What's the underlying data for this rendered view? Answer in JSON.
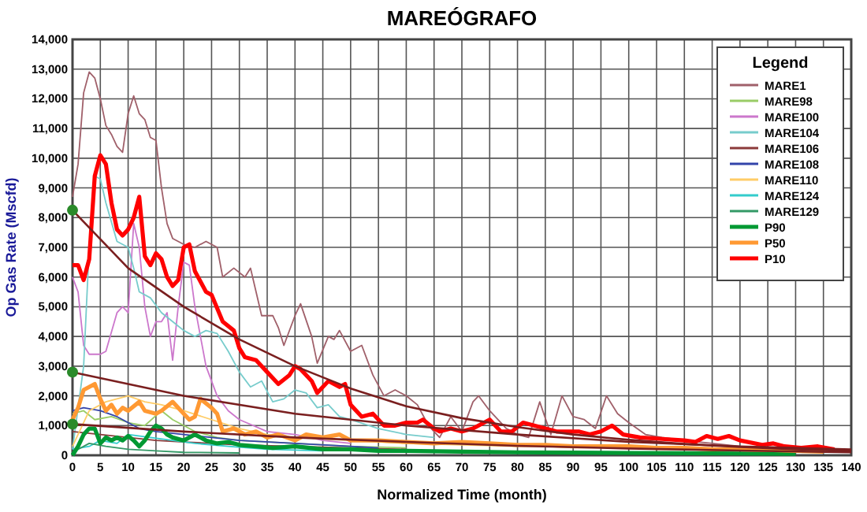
{
  "chart_data": {
    "type": "line",
    "title": "MAREÓGRAFO",
    "xlabel": "Normalized Time (month)",
    "ylabel": "Op Gas Rate (Mscfd)",
    "legend_title": "Legend",
    "legend": "top right",
    "grid": true,
    "xlim": [
      0,
      140
    ],
    "xticks": [
      0,
      5,
      10,
      15,
      20,
      25,
      30,
      35,
      40,
      45,
      50,
      55,
      60,
      65,
      70,
      75,
      80,
      85,
      90,
      95,
      100,
      105,
      110,
      115,
      120,
      125,
      130,
      135,
      140
    ],
    "ylim": [
      0,
      14000
    ],
    "yticks": [
      {
        "value": 0,
        "label": "0"
      },
      {
        "value": 1000,
        "label": "1,000"
      },
      {
        "value": 2000,
        "label": "2,000"
      },
      {
        "value": 3000,
        "label": "3,000"
      },
      {
        "value": 4000,
        "label": "4,000"
      },
      {
        "value": 5000,
        "label": "5,000"
      },
      {
        "value": 6000,
        "label": "6,000"
      },
      {
        "value": 7000,
        "label": "7,000"
      },
      {
        "value": 8000,
        "label": "8,000"
      },
      {
        "value": 9000,
        "label": "9,000"
      },
      {
        "value": 10000,
        "label": "10,000"
      },
      {
        "value": 11000,
        "label": "11,000"
      },
      {
        "value": 12000,
        "label": "12,000"
      },
      {
        "value": 13000,
        "label": "13,000"
      },
      {
        "value": 14000,
        "label": "14,000"
      }
    ],
    "series": [
      {
        "name": "MARE1",
        "color": "#a0606a",
        "x": [
          0,
          1,
          2,
          3,
          4,
          5,
          6,
          7,
          8,
          9,
          10,
          11,
          12,
          13,
          14,
          15,
          16,
          17,
          18,
          20,
          22,
          24,
          26,
          27,
          29,
          31,
          32,
          33,
          34,
          36,
          37,
          38,
          40,
          41,
          43,
          44,
          46,
          47,
          48,
          50,
          52,
          54,
          56,
          58,
          60,
          62,
          64,
          66,
          68,
          70,
          72,
          73,
          75,
          78,
          80,
          82,
          84,
          86,
          88,
          90,
          92,
          94,
          96,
          98,
          100,
          103,
          106,
          110,
          115,
          120,
          125,
          130
        ],
        "values": [
          8700,
          9800,
          12200,
          12900,
          12700,
          12000,
          11100,
          10800,
          10400,
          10200,
          11500,
          12100,
          11500,
          11300,
          10700,
          10600,
          9000,
          7800,
          7300,
          7100,
          7000,
          7200,
          7000,
          6000,
          6300,
          6000,
          6300,
          5500,
          4700,
          4700,
          4300,
          3700,
          4700,
          5100,
          4000,
          3100,
          4000,
          3900,
          4200,
          3500,
          3700,
          2700,
          2000,
          2200,
          2000,
          1700,
          1000,
          600,
          1300,
          800,
          1800,
          2000,
          1500,
          900,
          700,
          600,
          1800,
          700,
          2000,
          1300,
          1200,
          900,
          2000,
          1400,
          1100,
          700,
          600,
          500,
          400,
          300,
          250,
          200
        ]
      },
      {
        "name": "MARE98",
        "color": "#99cc66",
        "x": [
          0,
          2,
          4,
          7,
          10,
          13,
          16,
          18,
          22,
          26,
          30,
          40,
          50,
          60
        ],
        "values": [
          1400,
          1500,
          1200,
          1300,
          1100,
          1000,
          1500,
          1200,
          800,
          600,
          500,
          400,
          300,
          250
        ]
      },
      {
        "name": "MARE100",
        "color": "#cc77cc",
        "x": [
          0,
          1,
          2,
          3,
          5,
          6,
          8,
          9,
          10,
          11,
          12,
          13,
          14,
          15,
          16,
          17,
          18,
          19,
          20,
          21,
          22,
          24,
          26,
          28,
          30,
          35,
          40,
          45,
          50
        ],
        "values": [
          6000,
          5500,
          3700,
          3400,
          3400,
          3500,
          4800,
          5000,
          4800,
          7800,
          7000,
          5000,
          4000,
          4500,
          4500,
          4800,
          3200,
          5000,
          6500,
          6400,
          5000,
          3000,
          2000,
          1500,
          1200,
          800,
          700,
          500,
          400
        ]
      },
      {
        "name": "MARE104",
        "color": "#77cccc",
        "x": [
          0,
          2,
          3,
          4,
          5,
          6,
          8,
          10,
          11,
          12,
          14,
          16,
          18,
          20,
          22,
          24,
          26,
          28,
          30,
          32,
          34,
          36,
          38,
          40,
          42,
          44,
          46,
          48,
          50,
          55,
          60,
          65
        ],
        "values": [
          200,
          3000,
          7000,
          9400,
          9300,
          8500,
          7200,
          7000,
          6300,
          5500,
          5300,
          4800,
          4500,
          4200,
          4000,
          4200,
          4100,
          3500,
          2800,
          2300,
          2500,
          1800,
          1900,
          2200,
          2100,
          1600,
          1700,
          1300,
          1200,
          900,
          700,
          600
        ]
      },
      {
        "name": "MARE106",
        "color": "#8b3a3a",
        "x": [
          0,
          5,
          10,
          15,
          20,
          30,
          40,
          50,
          60
        ],
        "values": [
          800,
          700,
          600,
          500,
          450,
          350,
          300,
          250,
          200
        ]
      },
      {
        "name": "MARE108",
        "color": "#3344aa",
        "x": [
          0,
          2,
          5,
          8,
          12,
          15,
          20,
          25,
          30,
          40,
          50,
          55
        ],
        "values": [
          1500,
          1600,
          1500,
          1300,
          900,
          800,
          700,
          600,
          500,
          400,
          300,
          250
        ]
      },
      {
        "name": "MARE110",
        "color": "#ffcc66",
        "x": [
          0,
          3,
          6,
          10,
          13,
          16,
          20,
          25,
          30,
          35,
          40,
          50,
          60,
          70,
          80
        ],
        "values": [
          300,
          1500,
          1800,
          2000,
          1800,
          1700,
          1500,
          1200,
          900,
          700,
          600,
          500,
          400,
          350,
          300
        ]
      },
      {
        "name": "MARE124",
        "color": "#33cccc",
        "x": [
          0,
          3,
          5,
          8,
          10,
          14,
          18,
          22,
          28,
          35,
          45
        ],
        "values": [
          200,
          300,
          500,
          400,
          700,
          600,
          500,
          400,
          300,
          200,
          150
        ]
      },
      {
        "name": "MARE129",
        "color": "#339966",
        "x": [
          0,
          3,
          6,
          10,
          15,
          20,
          30
        ],
        "values": [
          100,
          400,
          300,
          200,
          150,
          100,
          80
        ]
      },
      {
        "name": "P90",
        "color": "#009933",
        "x": [
          0,
          1,
          2,
          3,
          4,
          5,
          6,
          7,
          8,
          9,
          10,
          11,
          12,
          13,
          14,
          15,
          16,
          17,
          18,
          20,
          22,
          24,
          26,
          28,
          30,
          33,
          36,
          40,
          45,
          50,
          55,
          60,
          70,
          80,
          90,
          100,
          110,
          120,
          130
        ],
        "values": [
          0,
          300,
          700,
          900,
          900,
          400,
          600,
          500,
          600,
          500,
          650,
          500,
          300,
          500,
          800,
          1000,
          900,
          700,
          600,
          500,
          700,
          500,
          400,
          450,
          350,
          300,
          250,
          300,
          200,
          200,
          150,
          150,
          120,
          100,
          90,
          80,
          70,
          60,
          50
        ]
      },
      {
        "name": "P50",
        "color": "#ff9933",
        "x": [
          0,
          1,
          2,
          3,
          4,
          5,
          6,
          7,
          8,
          9,
          10,
          12,
          13,
          15,
          16,
          18,
          20,
          21,
          22,
          23,
          25,
          26,
          27,
          29,
          31,
          33,
          35,
          37,
          40,
          42,
          45,
          48,
          50,
          55,
          60,
          65,
          70,
          75,
          80,
          85,
          90,
          95,
          100,
          105,
          110,
          115,
          120,
          125,
          130,
          135
        ],
        "values": [
          1200,
          1600,
          2200,
          2300,
          2400,
          1900,
          1500,
          1700,
          1400,
          1600,
          1500,
          1800,
          1500,
          1400,
          1500,
          1800,
          1400,
          1200,
          1300,
          1900,
          1600,
          1400,
          800,
          900,
          700,
          800,
          600,
          700,
          500,
          700,
          600,
          700,
          500,
          500,
          450,
          400,
          450,
          400,
          350,
          350,
          300,
          300,
          300,
          250,
          250,
          200,
          200,
          180,
          150,
          120
        ]
      },
      {
        "name": "P10",
        "color": "#ff0000",
        "x": [
          0,
          1,
          2,
          3,
          4,
          5,
          6,
          7,
          8,
          9,
          10,
          11,
          12,
          13,
          14,
          15,
          16,
          17,
          18,
          19,
          20,
          21,
          22,
          24,
          25,
          27,
          29,
          30,
          31,
          33,
          35,
          37,
          39,
          40,
          41,
          43,
          44,
          46,
          47,
          48,
          49,
          50,
          52,
          54,
          56,
          58,
          60,
          62,
          63,
          65,
          66,
          68,
          70,
          72,
          74,
          75,
          77,
          79,
          81,
          83,
          85,
          87,
          89,
          91,
          93,
          95,
          97,
          99,
          102,
          106,
          110,
          112,
          114,
          116,
          118,
          120,
          124,
          126,
          128,
          131,
          134,
          137
        ],
        "values": [
          6400,
          6400,
          5900,
          6600,
          9400,
          10100,
          9800,
          8500,
          7600,
          7400,
          7600,
          8000,
          8700,
          6700,
          6400,
          6800,
          6600,
          6000,
          5700,
          5900,
          7000,
          7100,
          6200,
          5500,
          5400,
          4500,
          4200,
          3600,
          3300,
          3200,
          2800,
          2400,
          2700,
          3000,
          2900,
          2500,
          2100,
          2500,
          2400,
          2300,
          2400,
          1700,
          1300,
          1400,
          1000,
          1000,
          1100,
          1100,
          1200,
          900,
          800,
          900,
          800,
          900,
          1100,
          1200,
          800,
          800,
          1100,
          1000,
          900,
          800,
          800,
          800,
          700,
          800,
          1000,
          700,
          600,
          550,
          500,
          450,
          650,
          550,
          650,
          500,
          350,
          400,
          300,
          250,
          300,
          200
        ]
      },
      {
        "color": "#7a1f1f",
        "x": [
          0,
          10,
          20,
          30,
          40,
          50,
          60,
          70,
          80,
          90,
          100,
          110,
          120,
          130,
          140
        ],
        "values": [
          8250,
          6300,
          5000,
          3900,
          3000,
          2250,
          1650,
          1250,
          950,
          700,
          520,
          380,
          280,
          200,
          150
        ]
      },
      {
        "color": "#7a1f1f",
        "x": [
          0,
          20,
          40,
          60,
          80,
          100,
          120,
          140
        ],
        "values": [
          2800,
          2000,
          1400,
          1000,
          700,
          450,
          300,
          200
        ]
      },
      {
        "color": "#7a1f1f",
        "x": [
          0,
          20,
          40,
          60,
          80,
          100,
          120,
          140
        ],
        "values": [
          1050,
          800,
          600,
          450,
          320,
          230,
          160,
          100
        ]
      },
      {
        "type": "scatter",
        "marker": "circle",
        "color": "#2a8a2a",
        "x": [
          0,
          0,
          0
        ],
        "values": [
          8250,
          2800,
          1050
        ]
      }
    ]
  }
}
